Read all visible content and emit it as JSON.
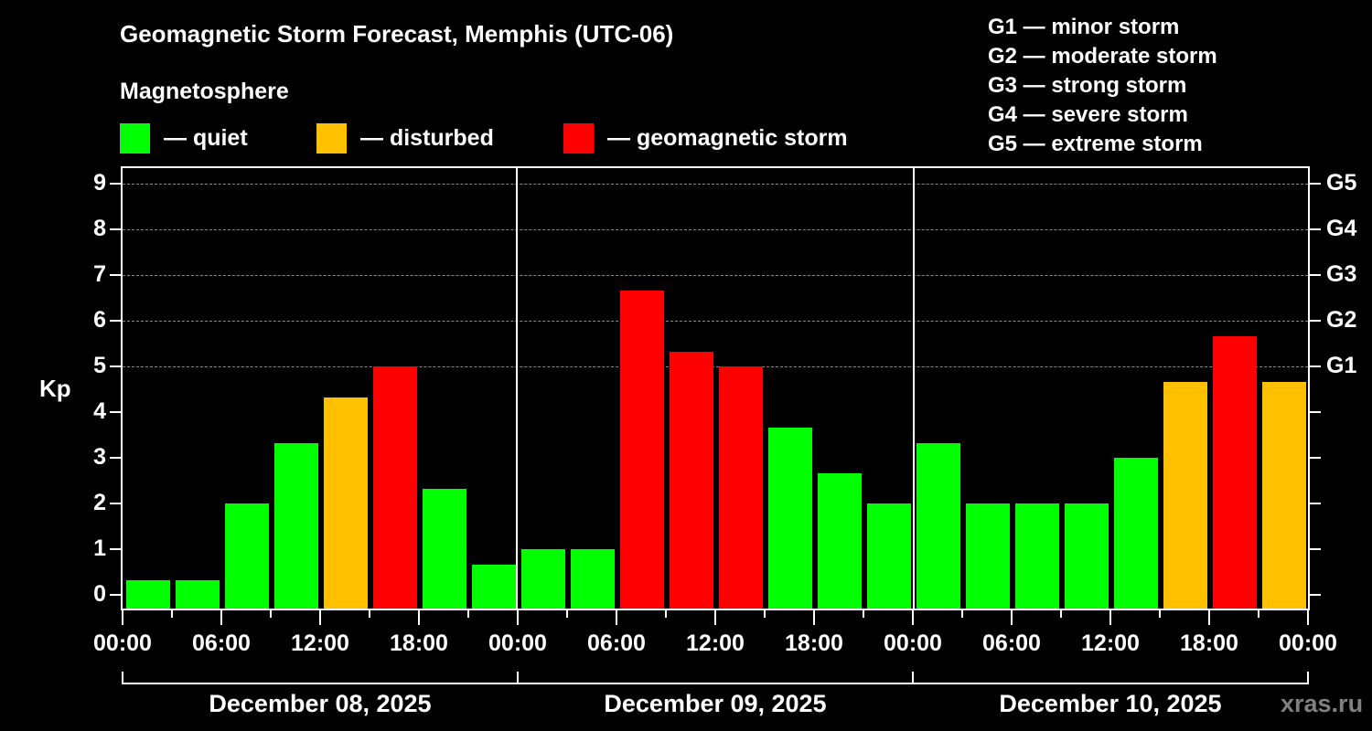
{
  "header": {
    "title": "Geomagnetic Storm Forecast, Memphis (UTC-06)",
    "subtitle": "Magnetosphere"
  },
  "legend": [
    {
      "label": "— quiet",
      "color": "#00ff00"
    },
    {
      "label": "— disturbed",
      "color": "#ffc000"
    },
    {
      "label": "— geomagnetic storm",
      "color": "#ff0000"
    }
  ],
  "g_scale": [
    "G1 — minor storm",
    "G2 — moderate storm",
    "G3 — strong storm",
    "G4 — severe storm",
    "G5 — extreme storm"
  ],
  "watermark": "xras.ru",
  "chart_data": {
    "type": "bar",
    "title": "Geomagnetic Storm Forecast, Memphis (UTC-06)",
    "xlabel": "",
    "ylabel": "Kp",
    "ylim": [
      -0.33,
      9.4
    ],
    "yticks": [
      0,
      1,
      2,
      3,
      4,
      5,
      6,
      7,
      8,
      9
    ],
    "right_axis_labels": {
      "5": "G1",
      "6": "G2",
      "7": "G3",
      "8": "G4",
      "9": "G5"
    },
    "grid": "dashed horizontal at Kp 5-9",
    "xtick_labels": [
      "00:00",
      "06:00",
      "12:00",
      "18:00",
      "00:00",
      "06:00",
      "12:00",
      "18:00",
      "00:00",
      "06:00",
      "12:00",
      "18:00",
      "00:00"
    ],
    "days": [
      "December 08, 2025",
      "December 09, 2025",
      "December 10, 2025"
    ],
    "categories": [
      "Dec 08 00-03",
      "Dec 08 03-06",
      "Dec 08 06-09",
      "Dec 08 09-12",
      "Dec 08 12-15",
      "Dec 08 15-18",
      "Dec 08 18-21",
      "Dec 08 21-24",
      "Dec 09 00-03",
      "Dec 09 03-06",
      "Dec 09 06-09",
      "Dec 09 09-12",
      "Dec 09 12-15",
      "Dec 09 15-18",
      "Dec 09 18-21",
      "Dec 09 21-24",
      "Dec 10 00-03",
      "Dec 10 03-06",
      "Dec 10 06-09",
      "Dec 10 09-12",
      "Dec 10 12-15",
      "Dec 10 15-18",
      "Dec 10 18-21",
      "Dec 10 21-24"
    ],
    "values": [
      0.33,
      0.33,
      2.0,
      3.33,
      4.33,
      5.0,
      2.33,
      0.67,
      1.0,
      1.0,
      6.67,
      5.33,
      5.0,
      3.67,
      2.67,
      2.0,
      3.33,
      2.0,
      2.0,
      2.0,
      3.0,
      4.67,
      5.67,
      4.67
    ],
    "status": [
      "quiet",
      "quiet",
      "quiet",
      "quiet",
      "disturbed",
      "storm",
      "quiet",
      "quiet",
      "quiet",
      "quiet",
      "storm",
      "storm",
      "storm",
      "quiet",
      "quiet",
      "quiet",
      "quiet",
      "quiet",
      "quiet",
      "quiet",
      "quiet",
      "disturbed",
      "storm",
      "disturbed"
    ],
    "colors": {
      "quiet": "#00ff00",
      "disturbed": "#ffc000",
      "storm": "#ff0000"
    }
  }
}
